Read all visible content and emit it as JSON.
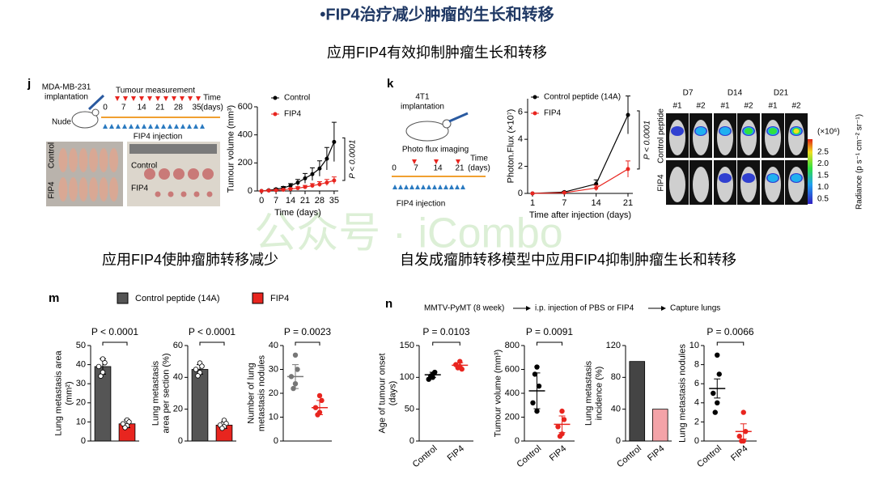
{
  "slide": {
    "title": "•FIP4治疗减少肿瘤的生长和转移",
    "subtitle": "应用FIP4有效抑制肿瘤生长和转移",
    "heading_left": "应用FIP4使肿瘤肺转移减少",
    "heading_right": "自发成瘤肺转移模型中应用FIP4抑制肿瘤生长和转移",
    "watermark": "公众号 · iCombo"
  },
  "panel_j": {
    "label": "j",
    "implant": [
      "MDA-MB-231",
      "implantation"
    ],
    "mouse": "Nude",
    "measure": "Tumour measurement",
    "time": [
      "Time",
      "(days)"
    ],
    "timeline": [
      0,
      7,
      14,
      21,
      28,
      35
    ],
    "injection": "FIP4 injection",
    "photo_left": [
      "Control",
      "FIP4"
    ],
    "photo_right": [
      "Control",
      "FIP4"
    ]
  },
  "panel_k": {
    "label": "k",
    "implant": [
      "4T1",
      "implantation"
    ],
    "imaging": "Photo flux imaging",
    "time": [
      "Time",
      "(days)"
    ],
    "timeline": [
      0,
      7,
      14,
      21
    ],
    "injection": "FIP4 injection"
  },
  "imaging": {
    "days": [
      "D7",
      "D14",
      "D21"
    ],
    "mice": [
      "#1",
      "#2"
    ],
    "rows": [
      "Control peptide",
      "FIP4"
    ],
    "scale_unit": "(×10⁶)",
    "scale_ticks": [
      "2.5",
      "2.0",
      "1.5",
      "1.0",
      "0.5"
    ],
    "scale_label": "Radiance (p s⁻¹ cm⁻² sr⁻¹)"
  },
  "panel_m": {
    "label": "m",
    "legend": [
      {
        "name": "Control peptide (14A)",
        "color": "#555555"
      },
      {
        "name": "FIP4",
        "color": "#e8251f"
      }
    ]
  },
  "panel_n": {
    "label": "n",
    "steps": [
      "MMTV-PyMT (8 week)",
      "i.p. injection of PBS or FIP4",
      "Capture lungs"
    ]
  },
  "chart_data": [
    {
      "type": "line",
      "x": [
        0,
        3.5,
        7,
        10.5,
        14,
        17.5,
        21,
        24.5,
        28,
        31.5,
        35
      ],
      "xlim": [
        -2,
        37
      ],
      "xticks": [
        0,
        7,
        14,
        21,
        28,
        35
      ],
      "ylim": [
        0,
        600
      ],
      "yticks": [
        0,
        200,
        400,
        600
      ],
      "xlabel": "Time (days)",
      "ylabel": [
        "Tumour volume (mm³)"
      ],
      "series": [
        {
          "name": "Control",
          "color": "#000000",
          "values": [
            0,
            5,
            12,
            22,
            38,
            60,
            90,
            120,
            160,
            230,
            350
          ],
          "errors": [
            0,
            3,
            6,
            10,
            15,
            22,
            35,
            45,
            55,
            80,
            140
          ]
        },
        {
          "name": "FIP4",
          "color": "#e8251f",
          "values": [
            0,
            3,
            5,
            9,
            14,
            20,
            28,
            38,
            48,
            60,
            75
          ],
          "errors": [
            0,
            2,
            3,
            5,
            7,
            10,
            12,
            15,
            18,
            22,
            25
          ]
        }
      ],
      "annotation": "P < 0.0001"
    },
    {
      "type": "line",
      "categories": [
        "1",
        "7",
        "14",
        "21"
      ],
      "ylim": [
        0,
        7
      ],
      "yticks": [
        0,
        2,
        4,
        6
      ],
      "xlabel": "Time after injection (days)",
      "ylabel": [
        "Photon.Flux (×10⁷)"
      ],
      "series": [
        {
          "name": "Control peptide (14A)",
          "color": "#000000",
          "values": [
            0,
            0.1,
            0.7,
            5.8
          ],
          "errors": [
            0,
            0.05,
            0.3,
            1.4
          ]
        },
        {
          "name": "FIP4",
          "color": "#e8251f",
          "values": [
            0,
            0.05,
            0.4,
            1.8
          ],
          "errors": [
            0,
            0.03,
            0.2,
            0.6
          ]
        }
      ],
      "annotation": "P < 0.0001"
    },
    {
      "type": "bar",
      "categories": [
        null,
        null
      ],
      "values": [
        39,
        9
      ],
      "errors": [
        4,
        2
      ],
      "points": [
        [
          43,
          41,
          39,
          36,
          34
        ],
        [
          11,
          10,
          9,
          8,
          7
        ]
      ],
      "colors": [
        "#555555",
        "#e8251f"
      ],
      "ylim": [
        0,
        50
      ],
      "yticks": [
        0,
        10,
        20,
        30,
        40,
        50
      ],
      "ylabel": [
        "Lung metastasis area",
        "(mm²)"
      ],
      "annotation": "P < 0.0001"
    },
    {
      "type": "bar",
      "categories": [
        null,
        null
      ],
      "values": [
        45,
        10
      ],
      "errors": [
        3,
        2
      ],
      "points": [
        [
          49,
          47,
          45,
          43,
          41
        ],
        [
          13,
          11,
          10,
          9,
          8
        ]
      ],
      "colors": [
        "#555555",
        "#e8251f"
      ],
      "ylim": [
        0,
        60
      ],
      "yticks": [
        0,
        20,
        40,
        60
      ],
      "ylabel": [
        "Lung metastasis",
        "area per section (%)"
      ],
      "annotation": "P < 0.0001"
    },
    {
      "type": "strip",
      "categories": [
        null,
        null
      ],
      "values": [
        27,
        14
      ],
      "errors": [
        5,
        3
      ],
      "points": [
        [
          36,
          30,
          27,
          24,
          22
        ],
        [
          19,
          17,
          14,
          12,
          11
        ]
      ],
      "colors": [
        "#777777",
        "#e8251f"
      ],
      "ylim": [
        0,
        40
      ],
      "yticks": [
        0,
        10,
        20,
        30,
        40
      ],
      "ylabel": [
        "Number of lung",
        "metastasis nodules"
      ],
      "annotation": "P = 0.0023"
    },
    {
      "type": "strip",
      "categories": [
        "Control",
        "FIP4"
      ],
      "values": [
        104,
        119
      ],
      "errors": [
        4,
        4
      ],
      "points": [
        [
          100,
          108,
          97,
          105,
          102
        ],
        [
          125,
          113,
          120,
          117,
          115
        ]
      ],
      "colors": [
        "#000000",
        "#e8251f"
      ],
      "ylim": [
        0,
        150
      ],
      "yticks": [
        0,
        50,
        100,
        150
      ],
      "ylabel": [
        "Age of tumour onset",
        "(days)"
      ],
      "annotation": "P = 0.0103"
    },
    {
      "type": "strip",
      "categories": [
        "Control",
        "FIP4"
      ],
      "values": [
        420,
        140
      ],
      "errors": [
        150,
        70
      ],
      "points": [
        [
          620,
          460,
          320,
          250,
          560
        ],
        [
          250,
          180,
          120,
          60,
          40
        ]
      ],
      "colors": [
        "#000000",
        "#e8251f"
      ],
      "ylim": [
        0,
        800
      ],
      "yticks": [
        0,
        200,
        400,
        600,
        800
      ],
      "ylabel": [
        "Tumour volume (mm³)"
      ],
      "annotation": "P = 0.0091"
    },
    {
      "type": "bar",
      "categories": [
        "Control",
        "FIP4"
      ],
      "values": [
        100,
        40
      ],
      "colors": [
        "#444444",
        "#f4a3a8"
      ],
      "ylim": [
        0,
        120
      ],
      "yticks": [
        0,
        40,
        80,
        120
      ],
      "ylabel": [
        "Lung metastasis",
        "incidence (%)"
      ]
    },
    {
      "type": "strip",
      "categories": [
        "Control",
        "FIP4"
      ],
      "values": [
        5.5,
        1
      ],
      "errors": [
        1,
        0.8
      ],
      "points": [
        [
          9,
          7,
          5,
          4,
          3
        ],
        [
          3,
          1,
          0.5,
          0,
          0
        ]
      ],
      "colors": [
        "#000000",
        "#e8251f"
      ],
      "ylim": [
        0,
        10
      ],
      "yticks": [
        0,
        2,
        4,
        6,
        8,
        10
      ],
      "ylabel": [
        "Lung metastasis nodules"
      ],
      "annotation": "P = 0.0066"
    }
  ]
}
